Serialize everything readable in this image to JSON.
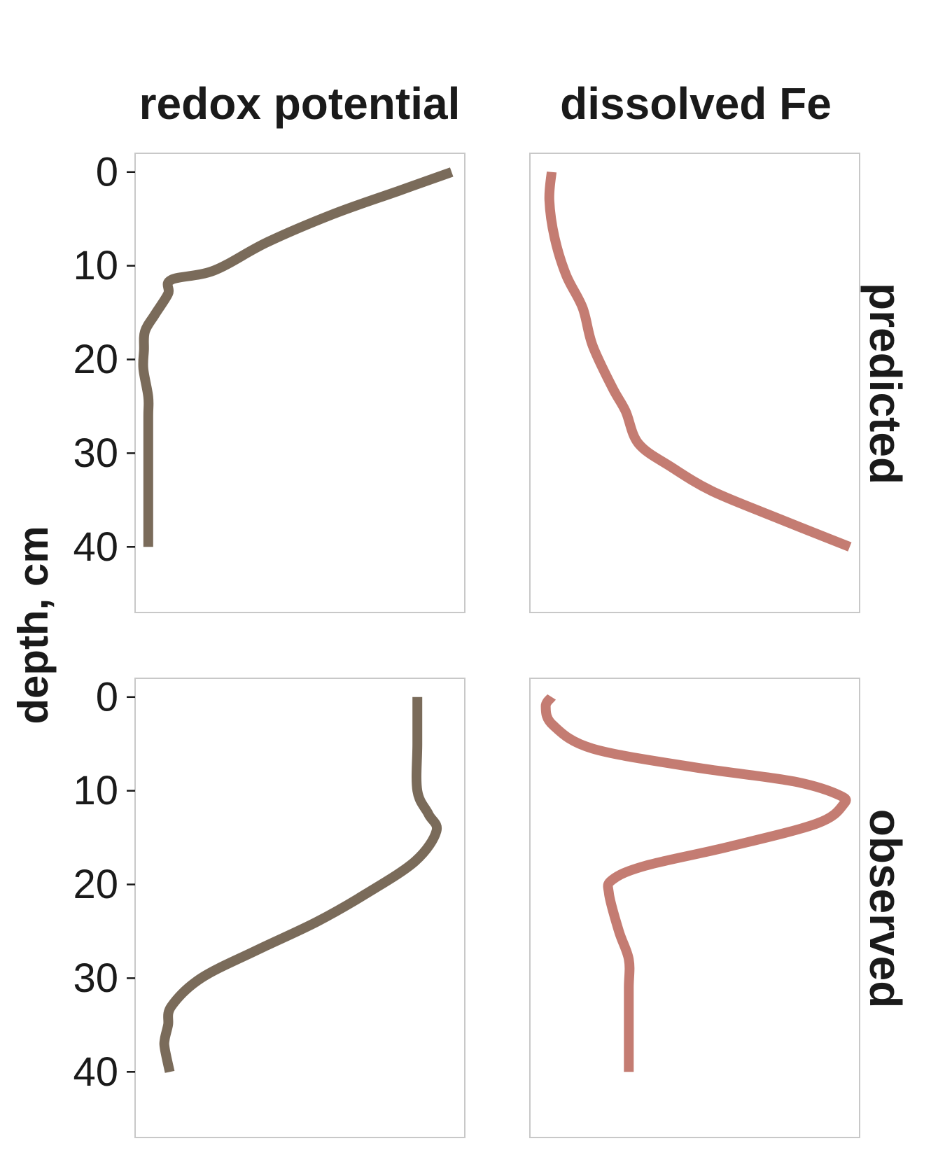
{
  "chart_data": {
    "type": "line",
    "layout": "facet-grid-2x2",
    "ylabel": "depth, cm",
    "y_axis": {
      "reversed": true,
      "ylim": [
        -2,
        47
      ],
      "ticks": [
        0,
        10,
        20,
        30,
        40
      ],
      "tick_labels": [
        "0",
        "10",
        "20",
        "30",
        "40"
      ]
    },
    "x_axis": {
      "labels_shown": false,
      "units": "relative (0-1)"
    },
    "grid": false,
    "columns": [
      "redox potential",
      "dissolved Fe"
    ],
    "rows": [
      "predicted",
      "observed"
    ],
    "colors": {
      "redox potential": "#7a6b5a",
      "dissolved Fe": "#c47c72"
    },
    "panels": [
      {
        "row": "predicted",
        "column": "redox potential",
        "points": [
          [
            0.96,
            0
          ],
          [
            0.8,
            2
          ],
          [
            0.6,
            4.5
          ],
          [
            0.4,
            7.5
          ],
          [
            0.24,
            10.5
          ],
          [
            0.11,
            11.5
          ],
          [
            0.1,
            13
          ],
          [
            0.06,
            15.2
          ],
          [
            0.03,
            17
          ],
          [
            0.027,
            19
          ],
          [
            0.025,
            21
          ],
          [
            0.04,
            24
          ],
          [
            0.04,
            26
          ],
          [
            0.04,
            30
          ],
          [
            0.04,
            35
          ],
          [
            0.04,
            40
          ]
        ]
      },
      {
        "row": "predicted",
        "column": "dissolved Fe",
        "points": [
          [
            0.066,
            0
          ],
          [
            0.059,
            3
          ],
          [
            0.075,
            7
          ],
          [
            0.11,
            11
          ],
          [
            0.16,
            14.5
          ],
          [
            0.19,
            18.5
          ],
          [
            0.25,
            23
          ],
          [
            0.29,
            25.5
          ],
          [
            0.33,
            29
          ],
          [
            0.43,
            31.5
          ],
          [
            0.55,
            34
          ],
          [
            0.72,
            36.5
          ],
          [
            0.97,
            40
          ]
        ]
      },
      {
        "row": "observed",
        "column": "redox potential",
        "points": [
          [
            0.856,
            0
          ],
          [
            0.856,
            5
          ],
          [
            0.856,
            10
          ],
          [
            0.89,
            12.5
          ],
          [
            0.914,
            14.3
          ],
          [
            0.85,
            17.5
          ],
          [
            0.7,
            21
          ],
          [
            0.55,
            24
          ],
          [
            0.37,
            27
          ],
          [
            0.2,
            30
          ],
          [
            0.11,
            33
          ],
          [
            0.1,
            35
          ],
          [
            0.09,
            36.5
          ],
          [
            0.09,
            37.5
          ],
          [
            0.105,
            40
          ]
        ]
      },
      {
        "row": "observed",
        "column": "dissolved Fe",
        "points": [
          [
            0.066,
            0
          ],
          [
            0.048,
            1
          ],
          [
            0.07,
            3
          ],
          [
            0.19,
            5.5
          ],
          [
            0.5,
            7.5
          ],
          [
            0.8,
            9
          ],
          [
            0.94,
            10.5
          ],
          [
            0.95,
            11.5
          ],
          [
            0.87,
            13.5
          ],
          [
            0.6,
            16
          ],
          [
            0.35,
            18
          ],
          [
            0.25,
            19.5
          ],
          [
            0.24,
            21
          ],
          [
            0.27,
            25
          ],
          [
            0.3,
            28
          ],
          [
            0.3,
            31
          ],
          [
            0.3,
            35
          ],
          [
            0.3,
            40
          ]
        ]
      }
    ]
  }
}
